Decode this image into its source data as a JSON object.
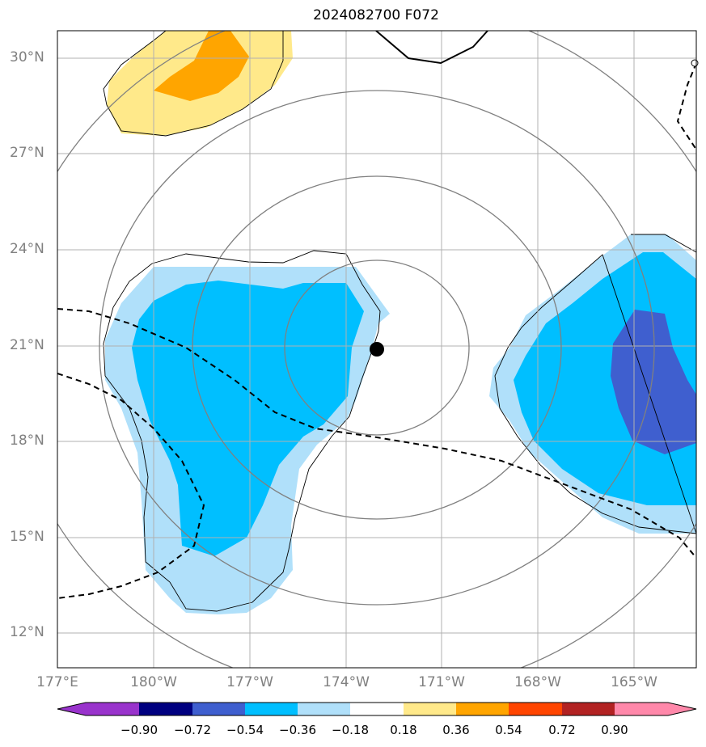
{
  "title": "2024082700 F072",
  "lat_labels": [
    "30°N",
    "27°N",
    "24°N",
    "21°N",
    "18°N",
    "15°N",
    "12°N"
  ],
  "lon_labels": [
    "177°E",
    "180°W",
    "177°W",
    "174°W",
    "171°W",
    "168°W",
    "165°W"
  ],
  "colorbar": {
    "ticks": [
      "−0.90",
      "−0.72",
      "−0.54",
      "−0.36",
      "−0.18",
      "0.18",
      "0.36",
      "0.54",
      "0.72",
      "0.90"
    ],
    "colors": [
      "#9933cc",
      "#000080",
      "#3f5fcf",
      "#00bfff",
      "#b0e0fa",
      "#ffffff",
      "#ffe98a",
      "#ffa500",
      "#ff4500",
      "#b22222",
      "#ff88aa"
    ]
  },
  "storm_center": {
    "lat": 20.9,
    "lon": "173.1°W"
  },
  "colors": {
    "grid": "#b0b0b0",
    "range_rings": "#808080",
    "track": "#000000"
  }
}
